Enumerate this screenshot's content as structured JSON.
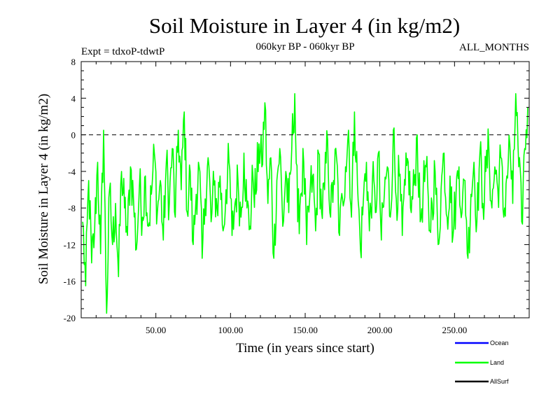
{
  "chart_data": {
    "type": "line",
    "title": "Soil Moisture in Layer 4 (in kg/m2)",
    "subtitle_left": "Expt = tdxoP-tdwtP",
    "subtitle_center": "060kyr BP - 060kyr BP",
    "subtitle_right": "ALL_MONTHS",
    "xlabel": "Time (in years since start)",
    "ylabel": "Soil Moisture in Layer 4 (in kg/m2)",
    "xlim": [
      0,
      300
    ],
    "ylim": [
      -20,
      8
    ],
    "x_ticks": [
      {
        "value": 50,
        "label": "50.00"
      },
      {
        "value": 100,
        "label": "100.00"
      },
      {
        "value": 150,
        "label": "150.00"
      },
      {
        "value": 200,
        "label": "200.00"
      },
      {
        "value": 250,
        "label": "250.00"
      }
    ],
    "y_ticks": [
      {
        "value": 8,
        "label": "8"
      },
      {
        "value": 4,
        "label": "4"
      },
      {
        "value": 0,
        "label": "0"
      },
      {
        "value": -4,
        "label": "-4"
      },
      {
        "value": -8,
        "label": "-8"
      },
      {
        "value": -12,
        "label": "-12"
      },
      {
        "value": -16,
        "label": "-16"
      },
      {
        "value": -20,
        "label": "-20"
      }
    ],
    "reference_line": {
      "y": 0,
      "style": "dashed"
    },
    "legend": [
      {
        "name": "Ocean",
        "color": "#0000ff"
      },
      {
        "name": "Land",
        "color": "#00ff00"
      },
      {
        "name": "AllSurf",
        "color": "#000000"
      }
    ],
    "series": [
      {
        "name": "Land",
        "color": "#00ff00",
        "x": [
          1,
          3,
          5,
          7,
          9,
          11,
          13,
          15,
          17,
          19,
          21,
          23,
          25,
          27,
          29,
          31,
          33,
          35,
          37,
          39,
          41,
          43,
          45,
          47,
          49,
          51,
          53,
          55,
          57,
          59,
          61,
          63,
          65,
          67,
          69,
          71,
          73,
          75,
          77,
          79,
          81,
          83,
          85,
          87,
          89,
          91,
          93,
          95,
          97,
          99,
          101,
          103,
          105,
          107,
          109,
          111,
          113,
          115,
          117,
          119,
          121,
          123,
          125,
          127,
          129,
          131,
          133,
          135,
          137,
          139,
          141,
          143,
          145,
          147,
          149,
          151,
          153,
          155,
          157,
          159,
          161,
          163,
          165,
          167,
          169,
          171,
          173,
          175,
          177,
          179,
          181,
          183,
          185,
          187,
          189,
          191,
          193,
          195,
          197,
          199,
          201,
          203,
          205,
          207,
          209,
          211,
          213,
          215,
          217,
          219,
          221,
          223,
          225,
          227,
          229,
          231,
          233,
          235,
          237,
          239,
          241,
          243,
          245,
          247,
          249,
          251,
          253,
          255,
          257,
          259,
          261,
          263,
          265,
          267,
          269,
          271,
          273,
          275,
          277,
          279,
          281,
          283,
          285,
          287,
          289,
          291,
          293,
          295,
          297,
          299
        ],
        "y": [
          -9.5,
          -16.5,
          -5.0,
          -14.0,
          -10.5,
          -3.0,
          -13.0,
          0.5,
          -19.5,
          -6.0,
          -12.0,
          -7.5,
          -15.5,
          -4.0,
          -8.0,
          -11.0,
          -3.5,
          -7.0,
          -12.5,
          -5.5,
          -9.0,
          -4.5,
          -10.0,
          -6.5,
          -2.0,
          -8.5,
          -5.0,
          -11.5,
          -3.0,
          -7.5,
          -1.5,
          -9.0,
          0.5,
          -6.0,
          2.5,
          -8.5,
          -4.0,
          -12.0,
          -6.5,
          -3.5,
          -13.5,
          -7.0,
          -2.5,
          -9.5,
          -5.5,
          -8.0,
          -4.5,
          -10.5,
          -6.0,
          -3.0,
          -11.0,
          -7.5,
          -5.0,
          -9.0,
          -2.0,
          -8.0,
          -10.0,
          -4.5,
          -6.5,
          -1.0,
          -3.5,
          3.5,
          -7.5,
          -2.5,
          -13.5,
          -5.0,
          -1.5,
          -10.0,
          -4.0,
          -8.5,
          -1.5,
          4.5,
          -9.5,
          -6.5,
          -3.0,
          -12.0,
          -7.0,
          -4.5,
          -10.5,
          -2.0,
          -8.5,
          -6.0,
          -0.5,
          -9.0,
          -5.0,
          -2.5,
          -11.0,
          -7.0,
          -3.5,
          0.5,
          -9.0,
          2.5,
          -5.5,
          -12.5,
          -7.0,
          -3.0,
          -10.5,
          -5.0,
          -8.5,
          -2.0,
          -11.5,
          -6.5,
          -3.5,
          -9.0,
          0.5,
          -7.0,
          -4.5,
          -11.0,
          -5.5,
          -3.0,
          -8.5,
          -5.5,
          0.0,
          -9.5,
          -6.0,
          -3.5,
          -10.5,
          -7.5,
          -4.0,
          -12.0,
          -6.0,
          -2.0,
          -9.0,
          -4.5,
          -11.0,
          -6.5,
          -3.5,
          -8.5,
          -5.0,
          -13.5,
          -6.5,
          -3.0,
          -9.5,
          -2.0,
          -7.5,
          -4.0,
          -1.5,
          -8.0,
          -3.5,
          -6.0,
          -2.5,
          -9.0,
          -4.5,
          -1.0,
          -7.5,
          4.5,
          -3.5,
          -9.5,
          -1.5,
          3.0
        ]
      }
    ]
  }
}
